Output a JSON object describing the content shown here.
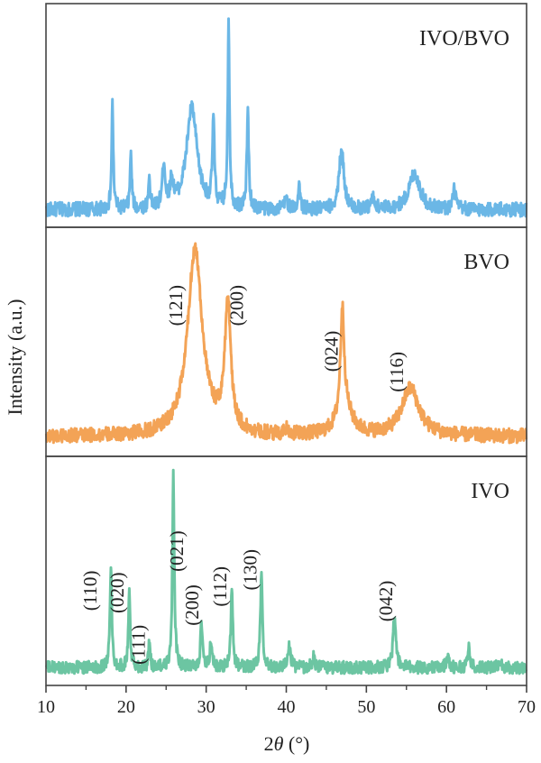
{
  "chart_data": {
    "type": "line",
    "xlabel_prefix": "2",
    "xlabel_symbol": "θ",
    "xlabel_suffix": " (°)",
    "ylabel": "Intensity (a.u.)",
    "xlim": [
      10,
      70
    ],
    "x_ticks": [
      "10",
      "20",
      "30",
      "40",
      "50",
      "60",
      "70"
    ],
    "grid": false,
    "panels": [
      {
        "name": "IVO/BVO",
        "color": "#6bb7e6",
        "baseline": 0.06,
        "noise": 0.035,
        "ylim": [
          0,
          1.05
        ],
        "peaks": [
          {
            "x": 18.3,
            "y": 0.52,
            "w": 0.12
          },
          {
            "x": 20.6,
            "y": 0.28,
            "w": 0.12
          },
          {
            "x": 22.9,
            "y": 0.16,
            "w": 0.12
          },
          {
            "x": 24.7,
            "y": 0.22,
            "w": 0.2
          },
          {
            "x": 25.7,
            "y": 0.12,
            "w": 0.25
          },
          {
            "x": 28.2,
            "y": 0.5,
            "w": 0.8
          },
          {
            "x": 30.9,
            "y": 0.42,
            "w": 0.15
          },
          {
            "x": 32.8,
            "y": 0.92,
            "w": 0.13
          },
          {
            "x": 35.2,
            "y": 0.48,
            "w": 0.14
          },
          {
            "x": 40.0,
            "y": 0.06,
            "w": 0.2
          },
          {
            "x": 41.6,
            "y": 0.12,
            "w": 0.15
          },
          {
            "x": 46.9,
            "y": 0.3,
            "w": 0.35
          },
          {
            "x": 50.8,
            "y": 0.05,
            "w": 0.3
          },
          {
            "x": 56.0,
            "y": 0.18,
            "w": 0.8
          },
          {
            "x": 61.0,
            "y": 0.1,
            "w": 0.2
          }
        ],
        "labels": []
      },
      {
        "name": "BVO",
        "color": "#f3a356",
        "baseline": 0.07,
        "noise": 0.035,
        "ylim": [
          0,
          1.05
        ],
        "peaks": [
          {
            "x": 28.6,
            "y": 0.9,
            "w": 1.1
          },
          {
            "x": 32.7,
            "y": 0.62,
            "w": 0.45
          },
          {
            "x": 47.0,
            "y": 0.5,
            "w": 0.28
          },
          {
            "x": 47.3,
            "y": 0.13,
            "w": 1.1
          },
          {
            "x": 55.5,
            "y": 0.23,
            "w": 1.3
          },
          {
            "x": 40.0,
            "y": 0.03,
            "w": 0.3
          }
        ],
        "labels": [
          {
            "text": "(121)",
            "x": 27.0,
            "y": 0.7
          },
          {
            "text": "(200)",
            "x": 34.6,
            "y": 0.7
          },
          {
            "text": "(024)",
            "x": 46.4,
            "y": 0.48
          },
          {
            "text": "(116)",
            "x": 54.6,
            "y": 0.38
          }
        ]
      },
      {
        "name": "IVO",
        "color": "#6cc5a2",
        "baseline": 0.06,
        "noise": 0.03,
        "ylim": [
          0,
          1.05
        ],
        "peaks": [
          {
            "x": 18.1,
            "y": 0.48,
            "w": 0.14
          },
          {
            "x": 20.4,
            "y": 0.37,
            "w": 0.13
          },
          {
            "x": 22.9,
            "y": 0.12,
            "w": 0.12
          },
          {
            "x": 25.9,
            "y": 0.92,
            "w": 0.14
          },
          {
            "x": 29.4,
            "y": 0.21,
            "w": 0.15
          },
          {
            "x": 30.6,
            "y": 0.13,
            "w": 0.15
          },
          {
            "x": 33.2,
            "y": 0.36,
            "w": 0.15
          },
          {
            "x": 36.9,
            "y": 0.45,
            "w": 0.16
          },
          {
            "x": 40.4,
            "y": 0.1,
            "w": 0.2
          },
          {
            "x": 43.4,
            "y": 0.05,
            "w": 0.2
          },
          {
            "x": 53.5,
            "y": 0.26,
            "w": 0.2
          },
          {
            "x": 60.1,
            "y": 0.05,
            "w": 0.2
          },
          {
            "x": 62.8,
            "y": 0.11,
            "w": 0.15
          },
          {
            "x": 66.7,
            "y": 0.03,
            "w": 0.2
          }
        ],
        "labels": [
          {
            "text": "(110)",
            "x": 16.3,
            "y": 0.43
          },
          {
            "text": "(020)",
            "x": 19.7,
            "y": 0.42
          },
          {
            "text": "(111)",
            "x": 22.3,
            "y": 0.17
          },
          {
            "text": "(021)",
            "x": 27.1,
            "y": 0.62
          },
          {
            "text": "(200)",
            "x": 29.0,
            "y": 0.36
          },
          {
            "text": "(112)",
            "x": 32.5,
            "y": 0.45
          },
          {
            "text": "(130)",
            "x": 36.3,
            "y": 0.53
          },
          {
            "text": "(042)",
            "x": 53.2,
            "y": 0.38
          }
        ]
      }
    ]
  }
}
